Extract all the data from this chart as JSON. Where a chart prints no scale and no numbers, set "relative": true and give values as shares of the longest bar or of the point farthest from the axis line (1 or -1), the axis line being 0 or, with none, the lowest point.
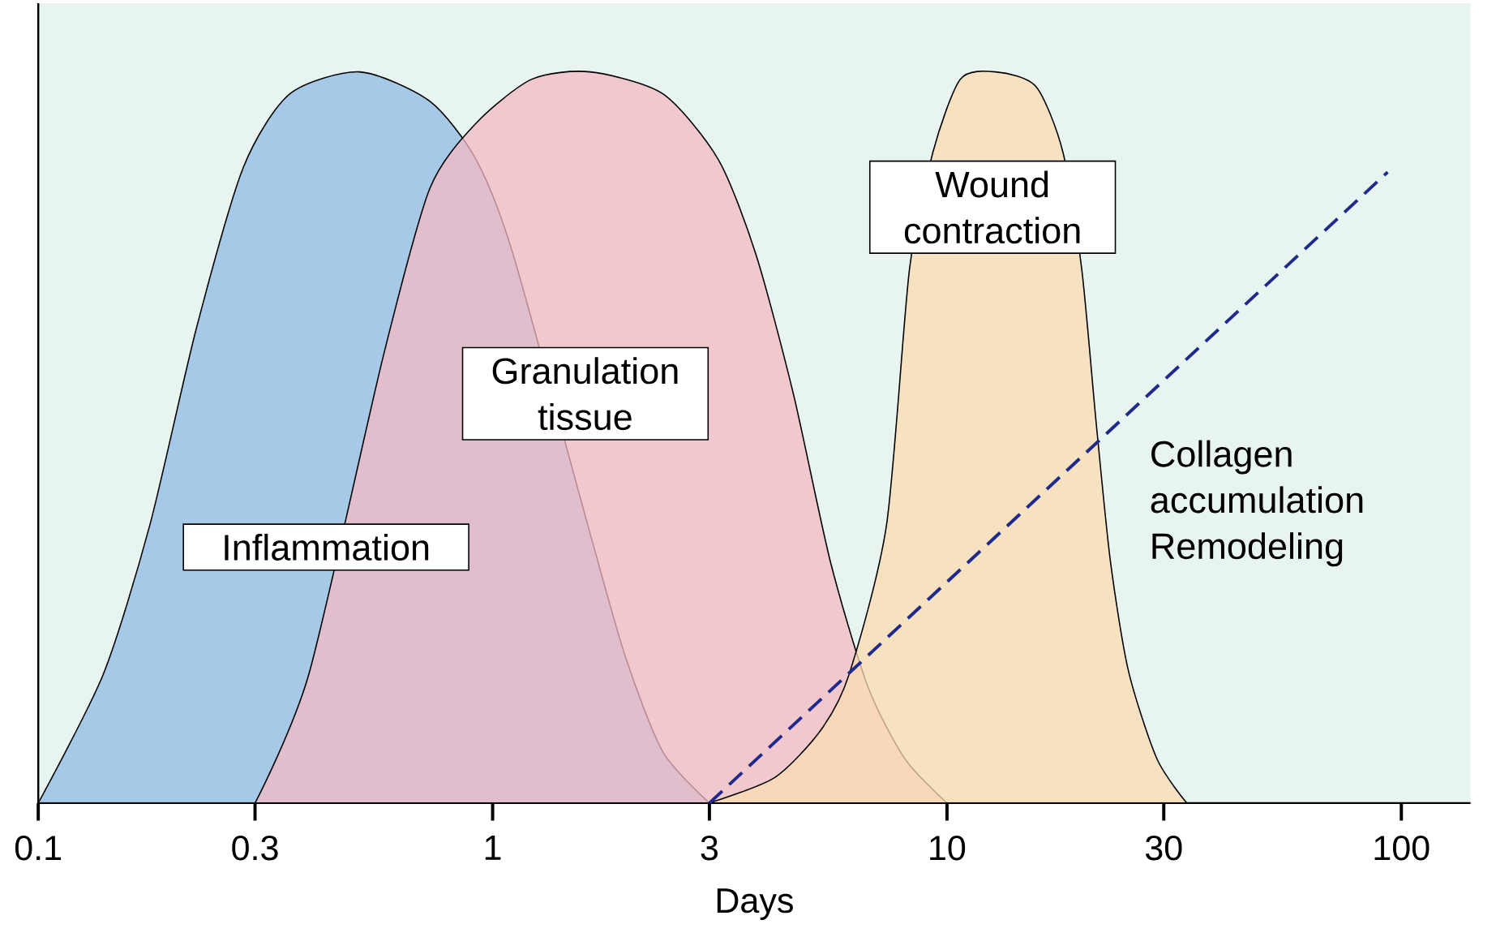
{
  "chart_data": {
    "type": "area",
    "relative": true,
    "xlabel": "Days",
    "log": "x",
    "xlim": [
      0.1,
      142
    ],
    "xticks": [
      0.1,
      0.3,
      1,
      3,
      10,
      30,
      100
    ],
    "grid": false,
    "series": [
      {
        "color": "#8fbbe3",
        "x": [
          0.1,
          0.139,
          0.176,
          0.223,
          0.283,
          0.358,
          0.51,
          0.727,
          0.92,
          1.11,
          1.34,
          1.62,
          1.96,
          2.37,
          3
        ],
        "values": [
          0,
          0.176,
          0.38,
          0.65,
          0.87,
          0.97,
          1,
          0.96,
          0.88,
          0.75,
          null,
          0.38,
          0.2,
          0.07,
          0
        ]
      },
      {
        "color": "#f5bac4",
        "x": [
          0.3,
          0.394,
          0.475,
          0.574,
          0.727,
          0.92,
          1.22,
          1.64,
          2.37,
          3.14,
          3.8,
          4.59,
          5.54,
          6.69,
          8.09,
          10
        ],
        "values": [
          0,
          0.176,
          null,
          0.61,
          0.84,
          0.93,
          0.99,
          1,
          0.97,
          0.88,
          0.75,
          0.56,
          0.33,
          0.16,
          0.06,
          0
        ]
      },
      {
        "color": "#fbdcb2",
        "x": [
          3,
          4.18,
          5.28,
          6.09,
          7.36,
          8.27,
          9.31,
          10.7,
          12.8,
          15.7,
          18.0,
          19.8,
          21.3,
          22.9,
          25.1,
          29.0,
          33.7
        ],
        "values": [
          0,
          0.035,
          0.1,
          0.176,
          0.38,
          0.73,
          0.89,
          0.99,
          1,
          0.98,
          0.89,
          0.73,
          0.52,
          0.33,
          0.18,
          0.06,
          0
        ]
      },
      {
        "type": "line",
        "color": "#1f2a8c",
        "line_style": "dashed",
        "x": [
          3,
          93.3
        ],
        "values": [
          0,
          0.863
        ]
      }
    ],
    "annotations": [
      "Inflammation",
      "Granulation tissue",
      "Wound contraction",
      "Collagen accumulation Remodeling"
    ]
  }
}
